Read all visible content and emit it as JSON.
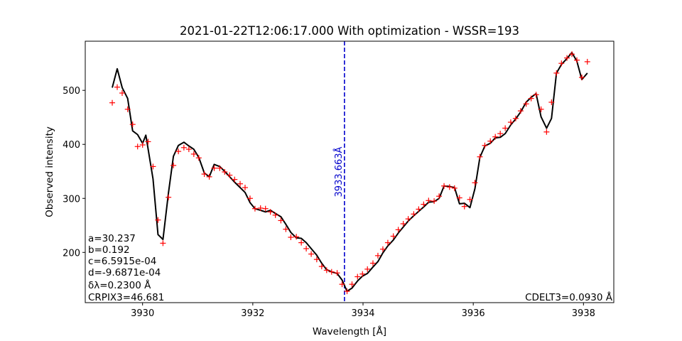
{
  "chart_data": {
    "type": "line",
    "title": "2021-01-22T12:06:17.000 With optimization - WSSR=193",
    "xlabel": "Wavelength [Å]",
    "ylabel": "Observed intensity",
    "xlim": [
      3928.96,
      3938.55
    ],
    "ylim": [
      107,
      591
    ],
    "xticks": [
      3930,
      3932,
      3934,
      3936,
      3938
    ],
    "yticks": [
      200,
      300,
      400,
      500
    ],
    "grid": false,
    "line_center": 3933.663,
    "line_center_label": "3933.663Å",
    "params_text": [
      "a=30.237",
      "b=0.192",
      "c=6.5915e-04",
      "d=-9.6871e-04",
      "δλ=0.2300 Å",
      "CRPIX3=46.681"
    ],
    "cdelt_text": "CDELT3=0.0930 Å",
    "series": [
      {
        "kind": "markers",
        "color": "#ff0000",
        "x": [
          3929.45,
          3929.54,
          3929.63,
          3929.73,
          3929.82,
          3929.91,
          3930.0,
          3930.1,
          3930.19,
          3930.28,
          3930.37,
          3930.47,
          3930.56,
          3930.65,
          3930.75,
          3930.84,
          3930.93,
          3931.02,
          3931.12,
          3931.21,
          3931.3,
          3931.4,
          3931.49,
          3931.58,
          3931.67,
          3931.77,
          3931.86,
          3931.95,
          3932.04,
          3932.14,
          3932.23,
          3932.32,
          3932.41,
          3932.51,
          3932.6,
          3932.69,
          3932.79,
          3932.88,
          3932.97,
          3933.06,
          3933.16,
          3933.25,
          3933.34,
          3933.43,
          3933.53,
          3933.62,
          3933.71,
          3933.8,
          3933.9,
          3933.99,
          3934.08,
          3934.18,
          3934.27,
          3934.36,
          3934.45,
          3934.55,
          3934.64,
          3934.73,
          3934.82,
          3934.92,
          3935.01,
          3935.1,
          3935.19,
          3935.29,
          3935.38,
          3935.47,
          3935.57,
          3935.66,
          3935.75,
          3935.84,
          3935.94,
          3936.03,
          3936.12,
          3936.21,
          3936.31,
          3936.4,
          3936.49,
          3936.58,
          3936.68,
          3936.77,
          3936.86,
          3936.96,
          3937.05,
          3937.14,
          3937.23,
          3937.33,
          3937.42,
          3937.51,
          3937.6,
          3937.7,
          3937.79,
          3937.88,
          3937.97,
          3938.07
        ],
        "y": [
          477,
          506,
          495,
          465,
          437,
          396,
          399,
          405,
          359,
          260,
          217,
          302,
          361,
          387,
          394,
          391,
          382,
          375,
          345,
          340,
          356,
          356,
          349,
          343,
          335,
          327,
          320,
          300,
          281,
          282,
          281,
          275,
          269,
          259,
          243,
          228,
          229,
          218,
          207,
          197,
          187,
          174,
          167,
          164,
          162,
          141,
          128,
          141,
          155,
          160,
          169,
          180,
          194,
          206,
          218,
          230,
          242,
          253,
          262,
          271,
          280,
          289,
          296,
          295,
          304,
          323,
          321,
          319,
          301,
          285,
          298,
          329,
          377,
          398,
          406,
          414,
          420,
          430,
          441,
          448,
          462,
          475,
          485,
          492,
          465,
          423,
          478,
          532,
          550,
          560,
          567,
          556,
          524,
          553
        ]
      },
      {
        "kind": "line",
        "color": "#000000",
        "x": [
          3929.45,
          3929.54,
          3929.63,
          3929.73,
          3929.82,
          3929.91,
          3930.0,
          3930.06,
          3930.19,
          3930.28,
          3930.37,
          3930.47,
          3930.56,
          3930.65,
          3930.75,
          3930.84,
          3930.93,
          3931.02,
          3931.12,
          3931.21,
          3931.3,
          3931.4,
          3931.49,
          3931.58,
          3931.67,
          3931.77,
          3931.86,
          3931.95,
          3932.04,
          3932.14,
          3932.23,
          3932.32,
          3932.41,
          3932.51,
          3932.6,
          3932.69,
          3932.79,
          3932.88,
          3932.97,
          3933.06,
          3933.16,
          3933.25,
          3933.34,
          3933.43,
          3933.53,
          3933.62,
          3933.71,
          3933.8,
          3933.9,
          3933.99,
          3934.08,
          3934.18,
          3934.27,
          3934.36,
          3934.45,
          3934.55,
          3934.64,
          3934.73,
          3934.82,
          3934.92,
          3935.01,
          3935.1,
          3935.19,
          3935.29,
          3935.38,
          3935.47,
          3935.57,
          3935.66,
          3935.75,
          3935.84,
          3935.94,
          3936.03,
          3936.12,
          3936.21,
          3936.31,
          3936.4,
          3936.49,
          3936.58,
          3936.68,
          3936.77,
          3936.86,
          3936.96,
          3937.05,
          3937.14,
          3937.23,
          3937.33,
          3937.42,
          3937.51,
          3937.6,
          3937.7,
          3937.79,
          3937.88,
          3937.97,
          3938.07
        ],
        "y": [
          505,
          540,
          505,
          485,
          425,
          418,
          402,
          417,
          336,
          233,
          224,
          310,
          378,
          398,
          404,
          397,
          391,
          376,
          347,
          340,
          363,
          359,
          350,
          340,
          330,
          320,
          311,
          292,
          281,
          278,
          275,
          278,
          272,
          266,
          252,
          237,
          227,
          226,
          218,
          207,
          195,
          180,
          168,
          164,
          161,
          149,
          128,
          134,
          147,
          156,
          161,
          173,
          183,
          199,
          212,
          223,
          236,
          247,
          258,
          268,
          276,
          284,
          293,
          294,
          300,
          323,
          322,
          320,
          290,
          291,
          283,
          318,
          376,
          397,
          402,
          412,
          413,
          420,
          436,
          447,
          460,
          478,
          487,
          494,
          451,
          430,
          448,
          532,
          548,
          559,
          570,
          554,
          520,
          532
        ]
      }
    ]
  }
}
